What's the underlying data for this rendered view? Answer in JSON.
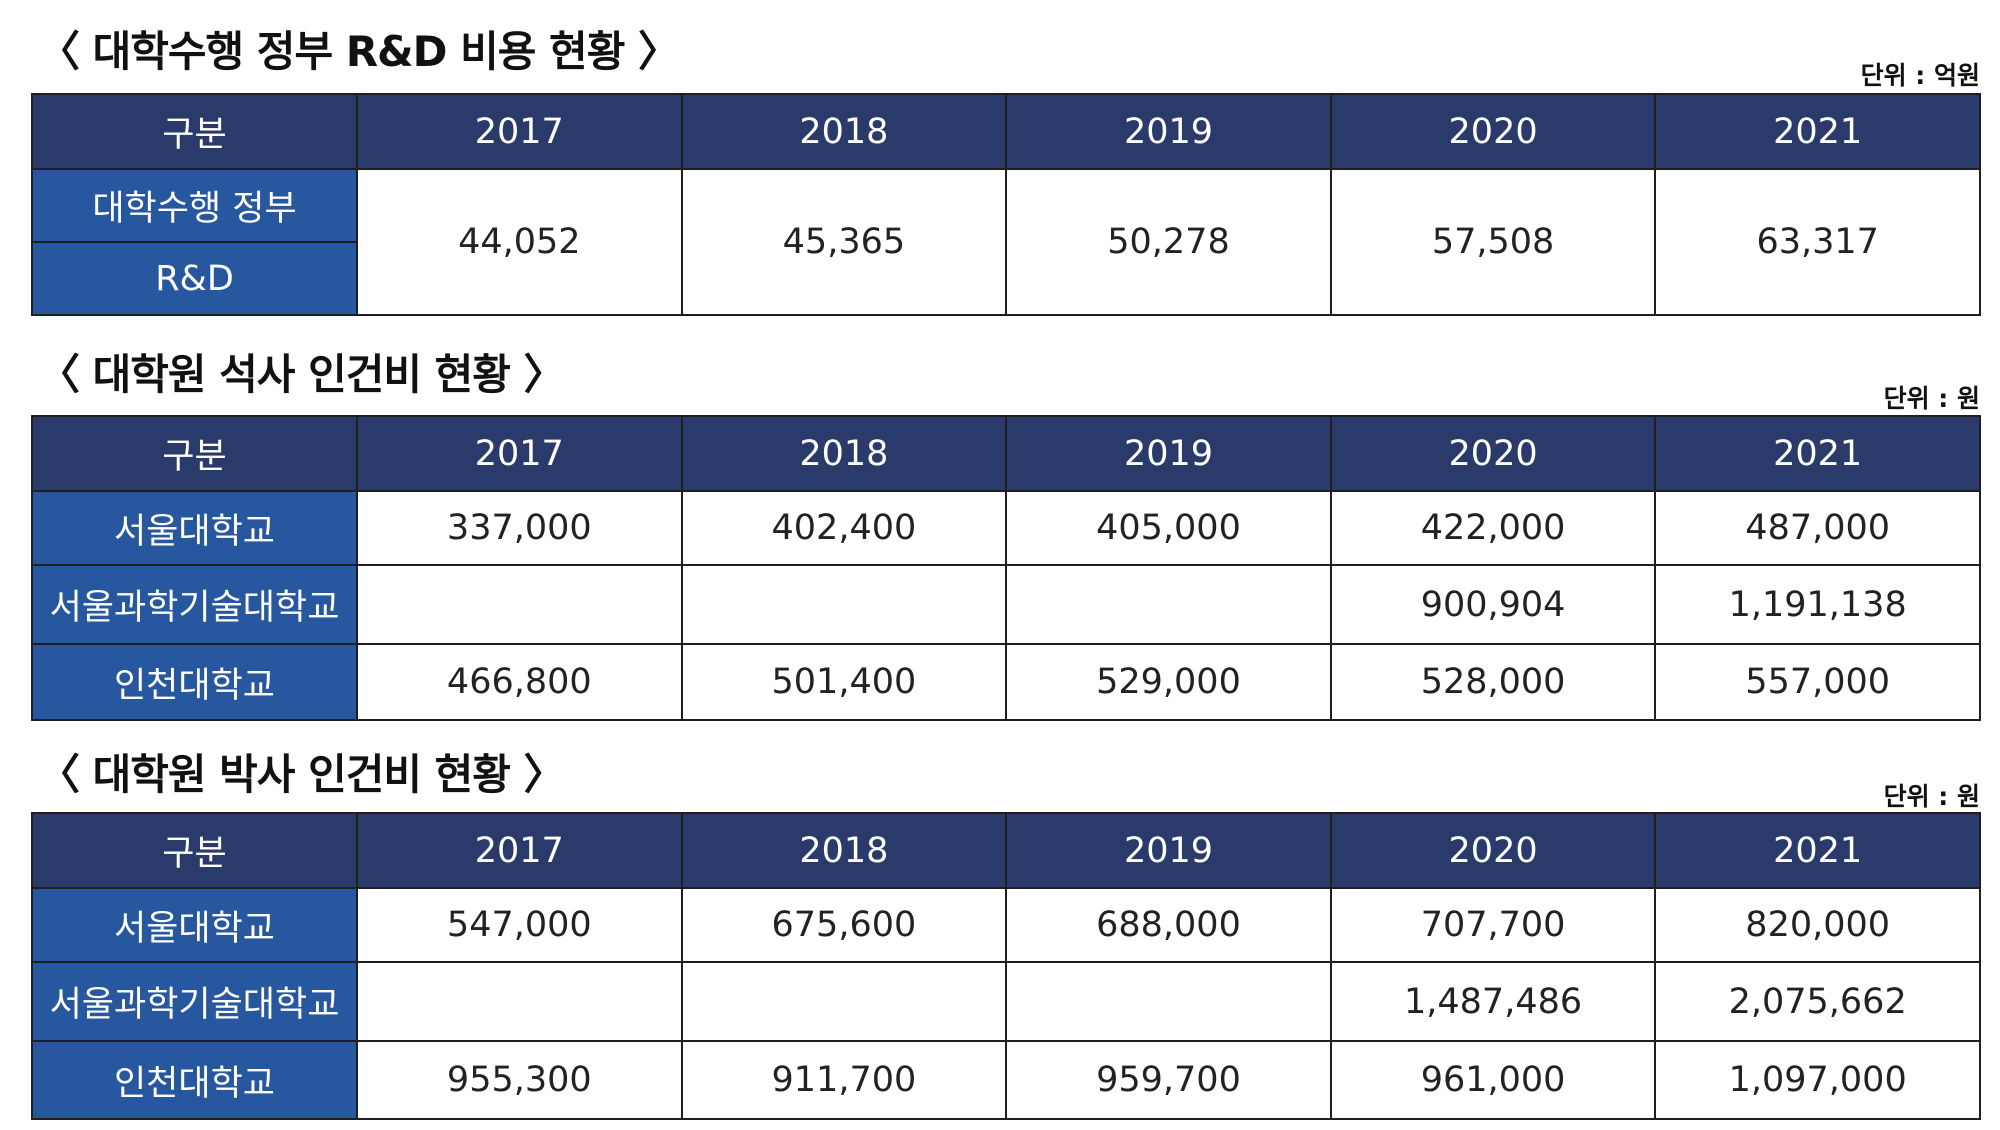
{
  "sections": [
    {
      "title": "〈 대학수행 정부 R&D 비용 현황 〉",
      "unit": "단위 : 억원",
      "header": [
        "구분",
        "2017",
        "2018",
        "2019",
        "2020",
        "2021"
      ],
      "row_label_line1": "대학수행 정부",
      "row_label_line2": "R&D",
      "values": [
        "44,052",
        "45,365",
        "50,278",
        "57,508",
        "63,317"
      ]
    },
    {
      "title": "〈 대학원 석사 인건비 현황 〉",
      "unit": "단위 : 원",
      "header": [
        "구분",
        "2017",
        "2018",
        "2019",
        "2020",
        "2021"
      ],
      "rows": [
        {
          "label": "서울대학교",
          "values": [
            "337,000",
            "402,400",
            "405,000",
            "422,000",
            "487,000"
          ]
        },
        {
          "label": "서울과학기술대학교",
          "values": [
            "",
            "",
            "",
            "900,904",
            "1,191,138"
          ]
        },
        {
          "label": "인천대학교",
          "values": [
            "466,800",
            "501,400",
            "529,000",
            "528,000",
            "557,000"
          ]
        }
      ]
    },
    {
      "title": "〈 대학원 박사 인건비 현황 〉",
      "unit": "단위 : 원",
      "header": [
        "구분",
        "2017",
        "2018",
        "2019",
        "2020",
        "2021"
      ],
      "rows": [
        {
          "label": "서울대학교",
          "values": [
            "547,000",
            "675,600",
            "688,000",
            "707,700",
            "820,000"
          ]
        },
        {
          "label": "서울과학기술대학교",
          "values": [
            "",
            "",
            "",
            "1,487,486",
            "2,075,662"
          ]
        },
        {
          "label": "인천대학교",
          "values": [
            "955,300",
            "911,700",
            "959,700",
            "961,000",
            "1,097,000"
          ]
        }
      ]
    }
  ],
  "colors": {
    "header_bg": "#2a3a6b",
    "rowhead_bg": "#27579e",
    "border": "#1f1f1f"
  }
}
